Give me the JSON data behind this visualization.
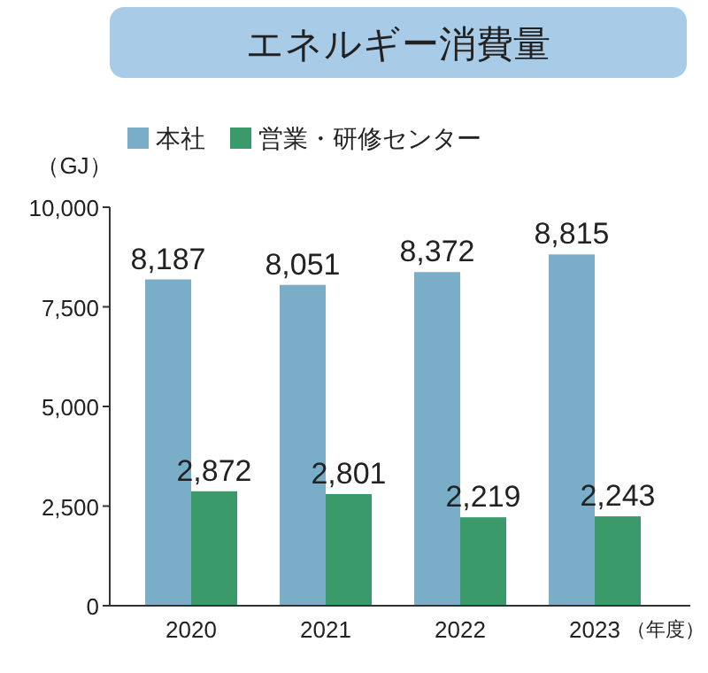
{
  "chart_data": {
    "type": "bar",
    "title": "エネルギー消費量",
    "ylabel": "（GJ）",
    "xlabel": "（年度）",
    "categories": [
      "2020",
      "2021",
      "2022",
      "2023"
    ],
    "series": [
      {
        "name": "本社",
        "color": "#7aaec8",
        "values": [
          8187,
          8051,
          8372,
          8815
        ],
        "value_labels": [
          "8,187",
          "8,051",
          "8,372",
          "8,815"
        ]
      },
      {
        "name": "営業・研修センター",
        "color": "#3a9a6a",
        "values": [
          2872,
          2801,
          2219,
          2243
        ],
        "value_labels": [
          "2,872",
          "2,801",
          "2,219",
          "2,243"
        ]
      }
    ],
    "ylim": [
      0,
      10000
    ],
    "yticks": [
      {
        "value": 0,
        "label": "0"
      },
      {
        "value": 2500,
        "label": "2,500"
      },
      {
        "value": 5000,
        "label": "5,000"
      },
      {
        "value": 7500,
        "label": "7,500"
      },
      {
        "value": 10000,
        "label": "10,000"
      }
    ],
    "legend": "top left",
    "grid": false
  }
}
